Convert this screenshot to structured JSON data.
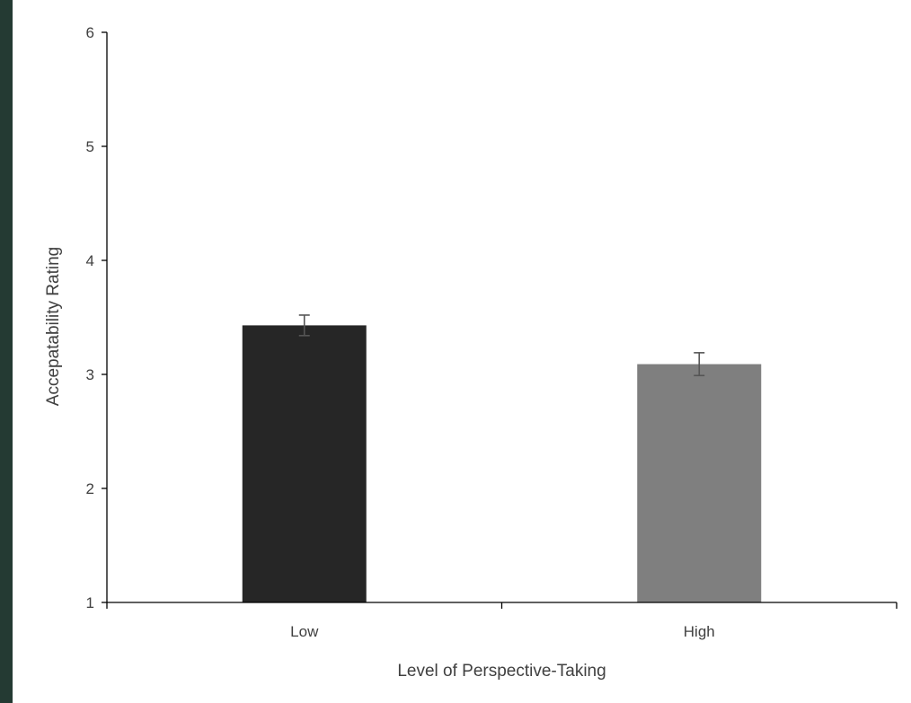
{
  "colors": {
    "background": "#243a33",
    "plot_background": "#ffffff",
    "axis": "#000000",
    "text": "#404040",
    "error_bar": "#555555"
  },
  "chart_data": {
    "type": "bar",
    "title": "",
    "xlabel": "Level of Perspective-Taking",
    "ylabel": "Accepatability Rating",
    "categories": [
      "Low",
      "High"
    ],
    "values": [
      3.43,
      3.09
    ],
    "errors": [
      0.09,
      0.1
    ],
    "bar_colors": [
      "#262626",
      "#7f7f7f"
    ],
    "ylim": [
      1,
      6
    ],
    "yticks": [
      1,
      2,
      3,
      4,
      5,
      6
    ],
    "grid": false,
    "legend": "none"
  }
}
